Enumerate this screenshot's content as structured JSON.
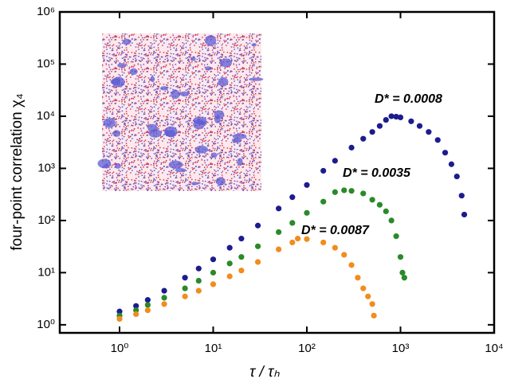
{
  "chart_data": {
    "type": "scatter",
    "xlabel": "τ / τₕ",
    "ylabel": "four-point correlation χ₄",
    "xscale": "log",
    "yscale": "log",
    "xlim": [
      0.23,
      10000
    ],
    "ylim": [
      0.7,
      1000000
    ],
    "xticks": [
      {
        "value": 1,
        "label": "10⁰"
      },
      {
        "value": 10,
        "label": "10¹"
      },
      {
        "value": 100,
        "label": "10²"
      },
      {
        "value": 1000,
        "label": "10³"
      },
      {
        "value": 10000,
        "label": "10⁴"
      }
    ],
    "yticks": [
      {
        "value": 1,
        "label": "10⁰"
      },
      {
        "value": 10,
        "label": "10¹"
      },
      {
        "value": 100,
        "label": "10²"
      },
      {
        "value": 1000,
        "label": "10³"
      },
      {
        "value": 10000,
        "label": "10⁴"
      },
      {
        "value": 100000,
        "label": "10⁵"
      },
      {
        "value": 1000000,
        "label": "10⁶"
      }
    ],
    "series": [
      {
        "name": "D* = 0.0008",
        "color": "#1c1c8e",
        "x": [
          1,
          1.5,
          2,
          3,
          5,
          7,
          10,
          15,
          20,
          30,
          50,
          70,
          100,
          150,
          200,
          300,
          400,
          500,
          600,
          700,
          800,
          900,
          1000,
          1300,
          1600,
          2000,
          2500,
          3000,
          3500,
          4000,
          4500,
          4800
        ],
        "values": [
          1.8,
          2.3,
          3,
          4.5,
          8,
          12,
          18,
          30,
          45,
          80,
          170,
          280,
          480,
          900,
          1400,
          2500,
          3700,
          5000,
          6500,
          8500,
          10000,
          9800,
          9500,
          8000,
          6500,
          5000,
          3500,
          2000,
          1200,
          700,
          300,
          130
        ]
      },
      {
        "name": "D* = 0.0035",
        "color": "#2a8a2a",
        "x": [
          1,
          1.5,
          2,
          3,
          5,
          7,
          10,
          15,
          20,
          30,
          50,
          70,
          100,
          150,
          200,
          250,
          300,
          400,
          500,
          600,
          700,
          800,
          900,
          1000,
          1050,
          1100
        ],
        "values": [
          1.5,
          1.9,
          2.4,
          3.3,
          5,
          7,
          10,
          15,
          20,
          32,
          60,
          90,
          140,
          230,
          350,
          380,
          370,
          330,
          250,
          200,
          150,
          100,
          50,
          20,
          10,
          8
        ]
      },
      {
        "name": "D* = 0.0087",
        "color": "#f28c1c",
        "x": [
          1,
          1.5,
          2,
          3,
          5,
          7,
          10,
          15,
          20,
          30,
          50,
          70,
          80,
          100,
          150,
          200,
          250,
          300,
          350,
          400,
          450,
          500,
          520
        ],
        "values": [
          1.3,
          1.6,
          1.9,
          2.5,
          3.5,
          4.5,
          6,
          8.5,
          11,
          16,
          28,
          38,
          45,
          44,
          38,
          30,
          22,
          14,
          8,
          5,
          3.5,
          2.5,
          1.5
        ]
      }
    ]
  }
}
